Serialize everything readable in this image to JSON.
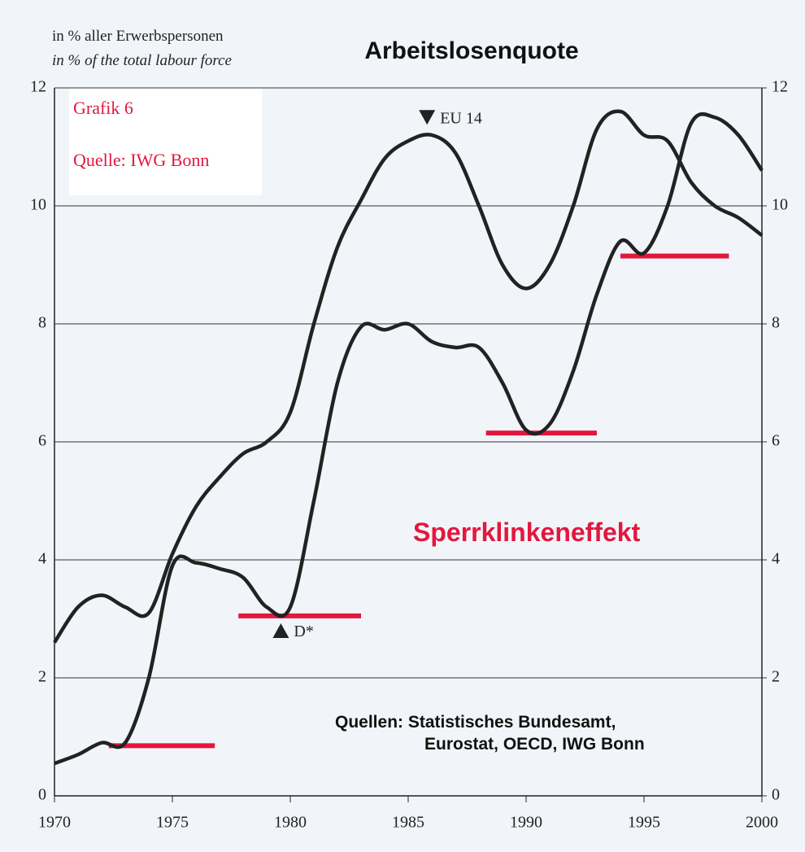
{
  "chart_data": {
    "type": "line",
    "title": "Arbeitslosenquote",
    "subtitle": [
      "in % aller Erwerbspersonen",
      "in % of the total labour force"
    ],
    "box_texts": [
      "Grafik 6",
      "Quelle: IWG Bonn"
    ],
    "annotation": "Sperrklinkeneffekt",
    "source": [
      "Quellen: Statistisches Bundesamt,",
      "Eurostat, OECD, IWG Bonn"
    ],
    "x": [
      1970,
      1971,
      1972,
      1973,
      1974,
      1975,
      1976,
      1977,
      1978,
      1979,
      1980,
      1981,
      1982,
      1983,
      1984,
      1985,
      1986,
      1987,
      1988,
      1989,
      1990,
      1991,
      1992,
      1993,
      1994,
      1995,
      1996,
      1997,
      1998,
      1999,
      2000
    ],
    "series": [
      {
        "name": "EU 14",
        "color": "#222222",
        "marker_x": 1985.8,
        "marker_y": 11.5,
        "values": [
          2.6,
          3.2,
          3.4,
          3.2,
          3.1,
          4.1,
          4.9,
          5.4,
          5.8,
          6.0,
          6.5,
          8.0,
          9.3,
          10.1,
          10.8,
          11.1,
          11.2,
          10.9,
          10.0,
          9.0,
          8.6,
          9.0,
          10.0,
          11.3,
          11.6,
          11.2,
          11.1,
          10.4,
          10.0,
          9.8,
          9.5
        ]
      },
      {
        "name": "D*",
        "color": "#222222",
        "marker_x": 1979.6,
        "marker_y": 2.8,
        "values": [
          0.55,
          0.7,
          0.9,
          0.9,
          2.0,
          3.9,
          3.95,
          3.85,
          3.7,
          3.2,
          3.2,
          5.0,
          7.0,
          7.95,
          7.9,
          8.0,
          7.7,
          7.6,
          7.6,
          7.0,
          6.2,
          6.3,
          7.2,
          8.5,
          9.4,
          9.2,
          10.0,
          11.4,
          11.5,
          11.2,
          10.6
        ]
      }
    ],
    "ratchet_lines": [
      {
        "x": [
          1972.3,
          1976.8
        ],
        "y": 0.85
      },
      {
        "x": [
          1977.8,
          1983.0
        ],
        "y": 3.05
      },
      {
        "x": [
          1988.3,
          1993.0
        ],
        "y": 6.15
      },
      {
        "x": [
          1994.0,
          1998.6
        ],
        "y": 9.15
      }
    ],
    "ratchet_color": "#e3173e",
    "xlim": [
      1970,
      2000
    ],
    "xticks": [
      1970,
      1975,
      1980,
      1985,
      1990,
      1995,
      2000
    ],
    "ylim": [
      0,
      12
    ],
    "yticks": [
      0,
      2,
      4,
      6,
      8,
      10,
      12
    ],
    "y2lim": [
      0,
      12
    ],
    "y2ticks": [
      0,
      2,
      4,
      6,
      8,
      10,
      12
    ],
    "grid": true
  }
}
